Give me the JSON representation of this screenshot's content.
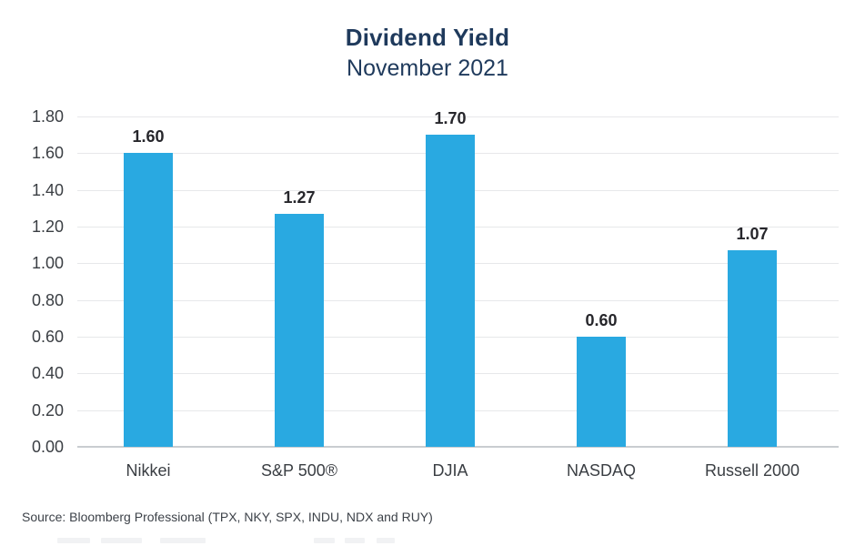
{
  "header": {
    "title": "Dividend Yield",
    "subtitle": "November 2021"
  },
  "footer": {
    "source": "Source: Bloomberg Professional (TPX, NKY, SPX, INDU, NDX and RUY)"
  },
  "colors": {
    "bar_blue": "#29A9E1",
    "title_navy": "#1F3A5C",
    "axis_text": "#3A3E43",
    "value_label": "#26262B",
    "gridline": "#E7E8EA",
    "baseline": "#C9CDD1"
  },
  "chart_data": {
    "type": "bar",
    "title": "Dividend Yield",
    "subtitle": "November 2021",
    "categories": [
      "Nikkei",
      "S&P 500®",
      "DJIA",
      "NASDAQ",
      "Russell 2000"
    ],
    "values": [
      1.6,
      1.27,
      1.7,
      0.6,
      1.07
    ],
    "value_labels": [
      "1.60",
      "1.27",
      "1.70",
      "0.60",
      "1.07"
    ],
    "xlabel": "",
    "ylabel": "",
    "ylim": [
      0,
      1.8
    ],
    "ytick_step": 0.2,
    "ytick_labels": [
      "1.80",
      "1.60",
      "1.40",
      "1.20",
      "1.00",
      "0.80",
      "0.60",
      "0.40",
      "0.20",
      "0.00"
    ],
    "grid": true,
    "legend": false,
    "bar_color": "#29A9E1"
  }
}
